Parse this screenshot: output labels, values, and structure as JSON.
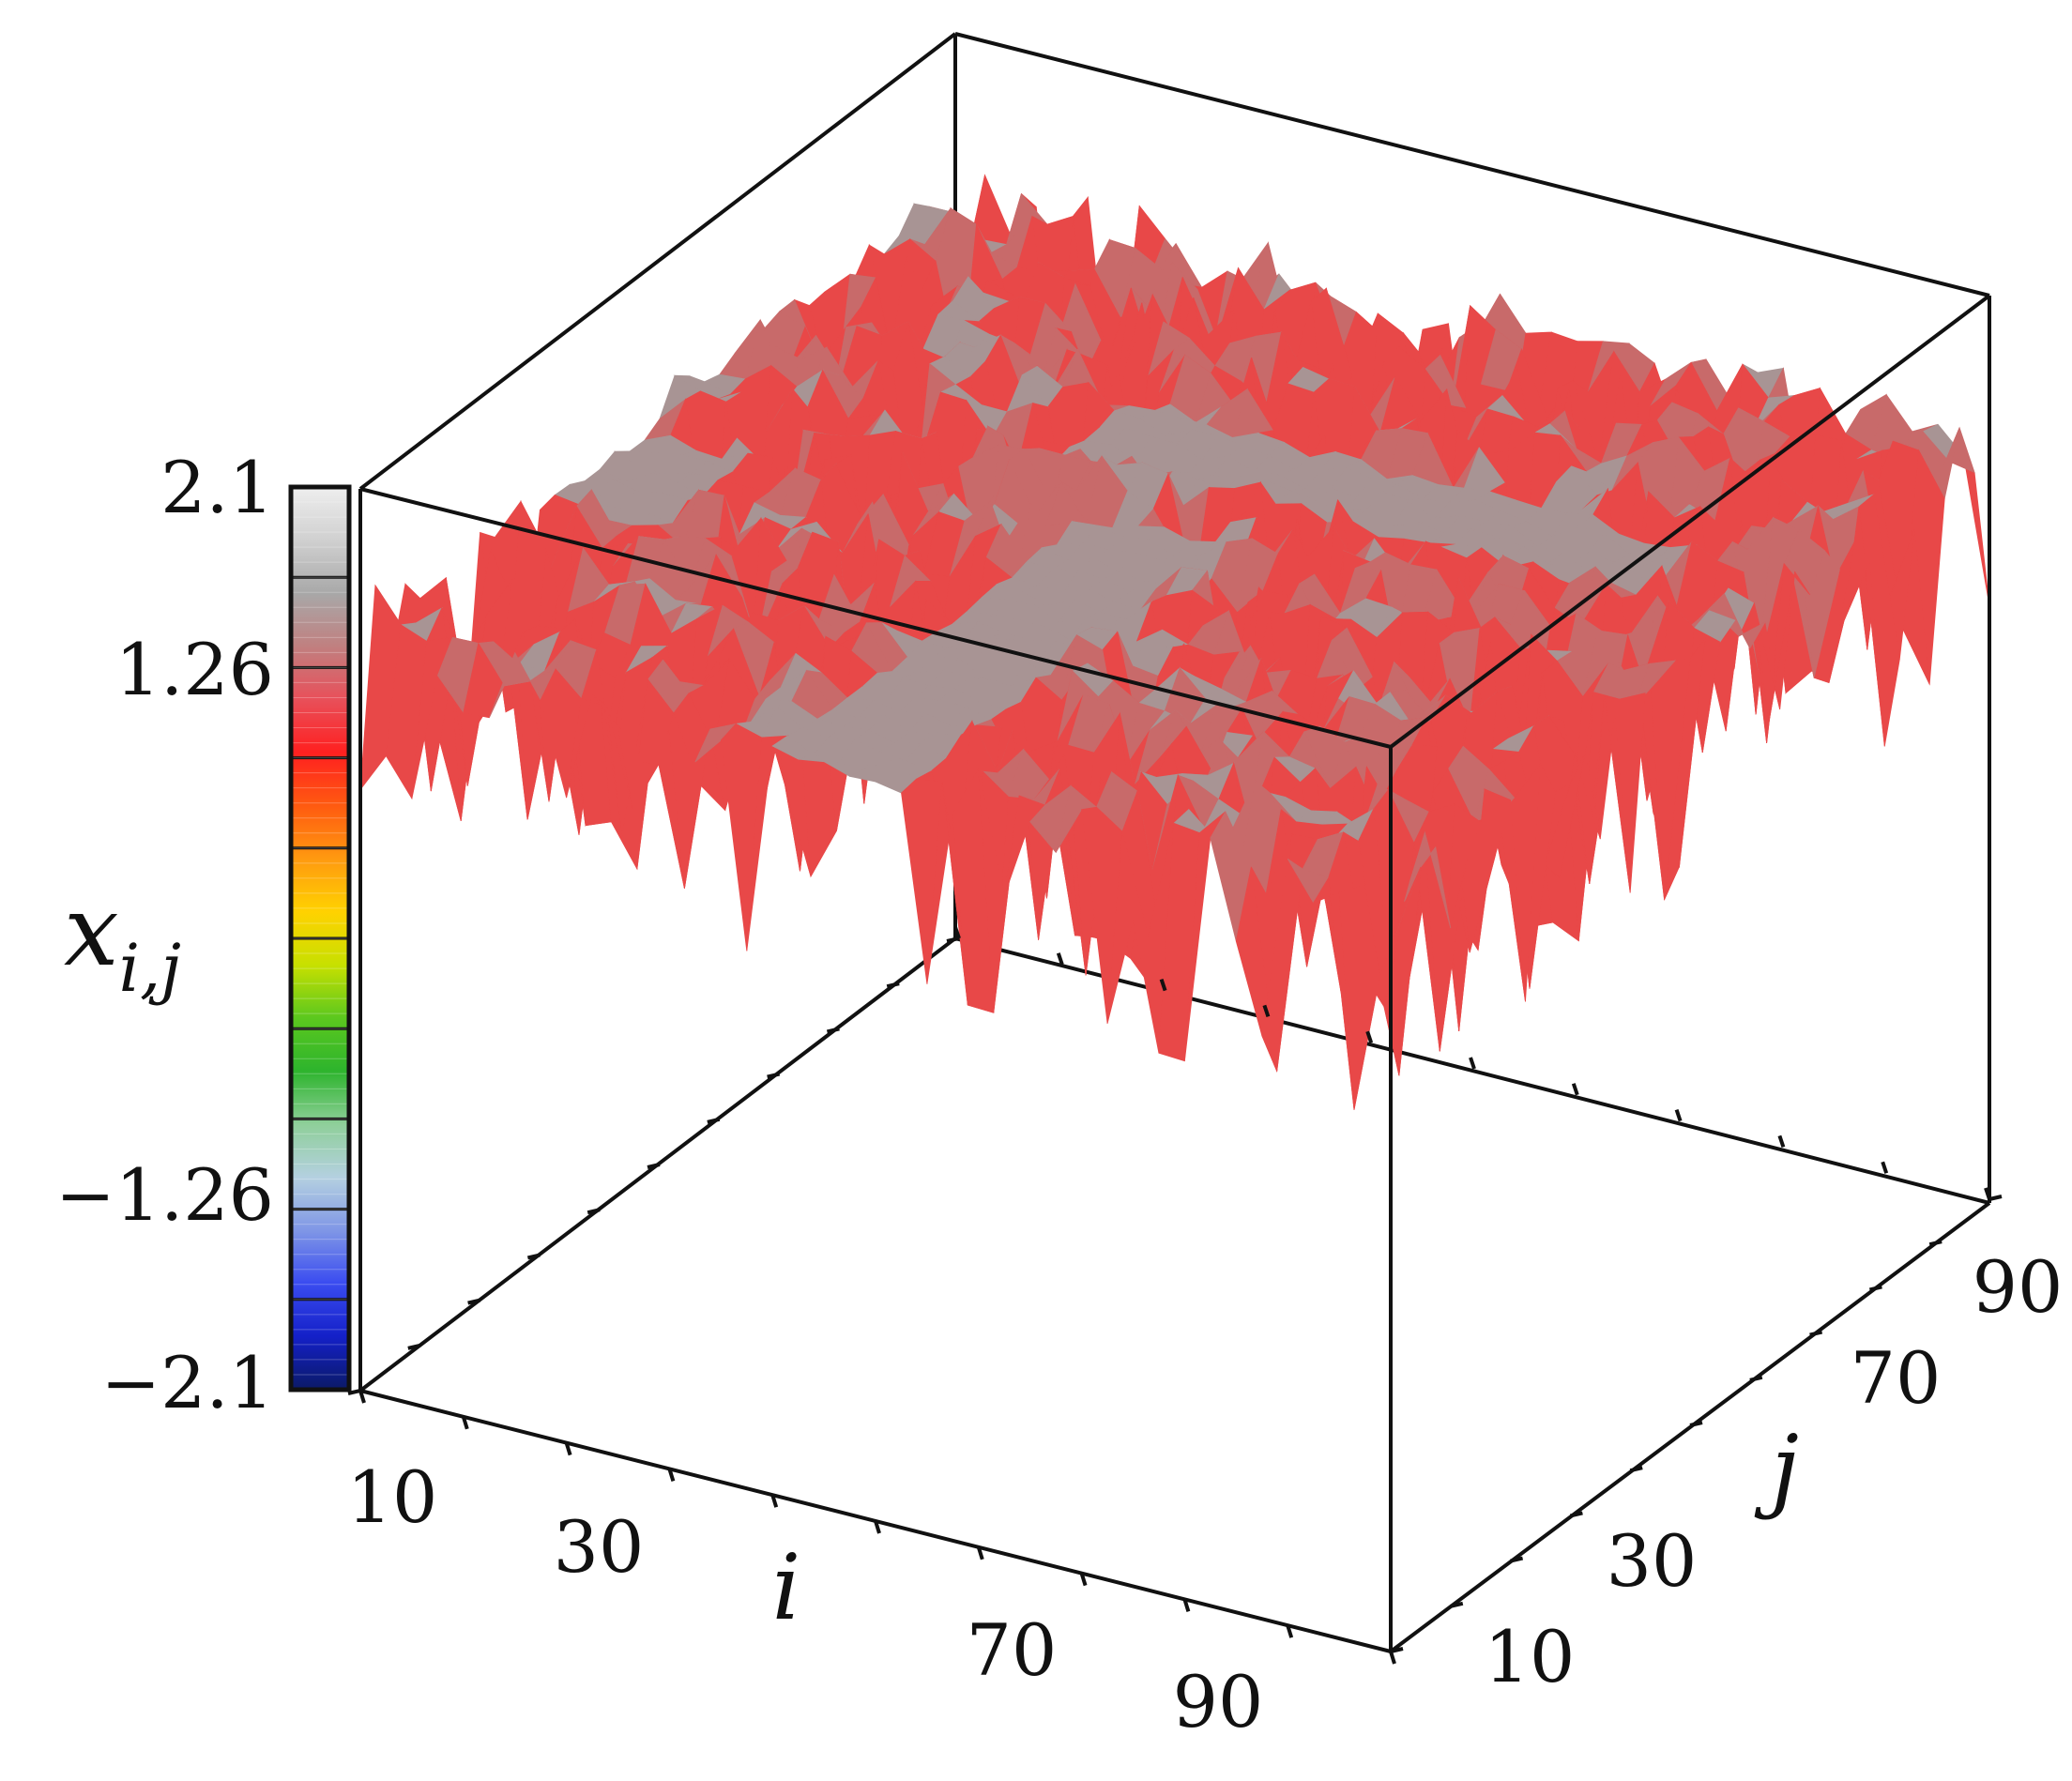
{
  "chart_data": {
    "type": "surface3d",
    "title": "",
    "xlabel": "i",
    "ylabel": "j",
    "zlabel": "x",
    "zlabel_sub": "i,j",
    "x_ticks": [
      "10",
      "30",
      "70",
      "90"
    ],
    "y_ticks": [
      "10",
      "30",
      "70",
      "90"
    ],
    "x_range": [
      1,
      100
    ],
    "y_range": [
      1,
      100
    ],
    "colorbar": {
      "min": -2.1,
      "max": 2.1,
      "tick_labels": [
        "2.1",
        "1.26",
        "−1.26",
        "−2.1"
      ],
      "tick_values": [
        2.1,
        1.26,
        -1.26,
        -2.1
      ],
      "colors": [
        "#0b1a66",
        "#1420c8",
        "#3a4cf0",
        "#7f96e6",
        "#b4d0e0",
        "#8fcf9a",
        "#2db42d",
        "#5cc81e",
        "#c8e000",
        "#ffd200",
        "#ff9a10",
        "#ff5a10",
        "#ff2020",
        "#e8505a",
        "#c08080",
        "#a8a8a8",
        "#d0d0d0",
        "#eeeeee"
      ]
    },
    "surface": {
      "description_colors": {
        "high": "#a89898",
        "low": "#e53b3b"
      },
      "plateau_value": 1.35,
      "spike_min": 0.3,
      "spike_max": 1.6
    },
    "grid": false,
    "legend": "colorbar-left"
  }
}
